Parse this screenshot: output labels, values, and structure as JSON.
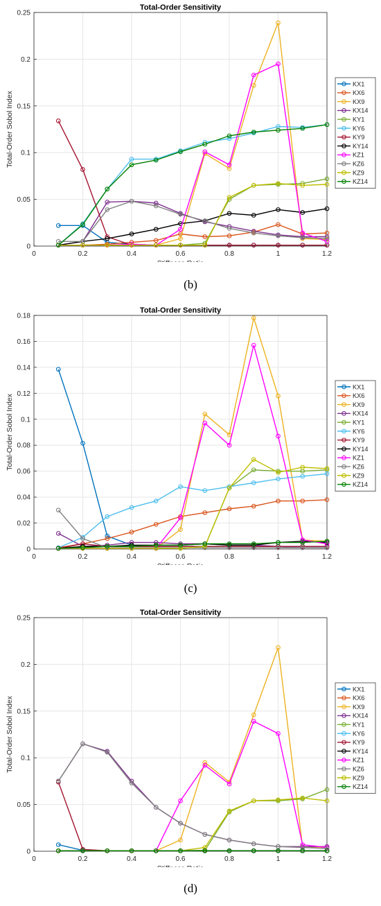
{
  "figure": {
    "captions": [
      "(b)",
      "(c)",
      "(d)"
    ]
  },
  "chart_data": [
    {
      "type": "line",
      "panel": "(b)",
      "title": "Total-Order Sensitivity",
      "xlabel": "Stiffness Ratio",
      "ylabel": "Total-Order Sobol Index",
      "xlim": [
        0,
        1.2
      ],
      "ylim": [
        0,
        0.25
      ],
      "xticks": [
        "0",
        "0.2",
        "0.4",
        "0.6",
        "0.8",
        "1",
        "1.2"
      ],
      "yticks": [
        "0",
        "0.05",
        "0.1",
        "0.15",
        "0.2",
        "0.25"
      ],
      "grid": true,
      "legend": "right",
      "x": [
        0.1,
        0.2,
        0.3,
        0.4,
        0.5,
        0.6,
        0.7,
        0.8,
        0.9,
        1.0,
        1.1,
        1.2
      ],
      "series": [
        {
          "name": "KX1",
          "color": "#0072BD",
          "values": [
            0.022,
            0.022,
            0.004,
            0.002,
            0.001,
            0.001,
            0.001,
            0.001,
            0.001,
            0.001,
            0.001,
            0.001
          ]
        },
        {
          "name": "KX6",
          "color": "#D95319",
          "values": [
            0.001,
            0.001,
            0.002,
            0.004,
            0.006,
            0.013,
            0.01,
            0.011,
            0.015,
            0.023,
            0.013,
            0.014
          ]
        },
        {
          "name": "KX9",
          "color": "#EDB120",
          "values": [
            0.001,
            0.001,
            0.001,
            0.001,
            0.001,
            0.008,
            0.099,
            0.083,
            0.172,
            0.239,
            0.008,
            0.007
          ]
        },
        {
          "name": "KX14",
          "color": "#7E2F8E",
          "values": [
            0.001,
            0.005,
            0.047,
            0.048,
            0.046,
            0.035,
            0.026,
            0.021,
            0.016,
            0.012,
            0.01,
            0.01
          ]
        },
        {
          "name": "KY1",
          "color": "#77AC30",
          "values": [
            0.001,
            0.001,
            0.001,
            0.001,
            0.001,
            0.001,
            0.003,
            0.05,
            0.065,
            0.066,
            0.067,
            0.072
          ]
        },
        {
          "name": "KY6",
          "color": "#4DBEEE",
          "values": [
            0.001,
            0.024,
            0.061,
            0.093,
            0.093,
            0.102,
            0.111,
            0.115,
            0.121,
            0.128,
            0.127,
            0.13
          ]
        },
        {
          "name": "KY9",
          "color": "#A2142F",
          "values": [
            0.134,
            0.082,
            0.01,
            0.001,
            0.001,
            0.001,
            0.001,
            0.001,
            0.001,
            0.001,
            0.001,
            0.001
          ]
        },
        {
          "name": "KY14",
          "color": "#000000",
          "values": [
            0.001,
            0.005,
            0.008,
            0.013,
            0.018,
            0.024,
            0.027,
            0.035,
            0.033,
            0.039,
            0.036,
            0.04
          ]
        },
        {
          "name": "KZ1",
          "color": "#FF00FF",
          "values": [
            0.001,
            0.001,
            0.001,
            0.002,
            0.001,
            0.018,
            0.101,
            0.087,
            0.183,
            0.195,
            0.014,
            0.005
          ]
        },
        {
          "name": "KZ6",
          "color": "#808080",
          "values": [
            0.005,
            0.005,
            0.039,
            0.048,
            0.043,
            0.034,
            0.027,
            0.019,
            0.014,
            0.011,
            0.009,
            0.008
          ]
        },
        {
          "name": "KZ9",
          "color": "#BDBD00",
          "values": [
            0.001,
            0.001,
            0.001,
            0.001,
            0.001,
            0.001,
            0.001,
            0.052,
            0.065,
            0.067,
            0.065,
            0.066
          ]
        },
        {
          "name": "KZ14",
          "color": "#008000",
          "values": [
            0.001,
            0.023,
            0.061,
            0.087,
            0.092,
            0.101,
            0.109,
            0.118,
            0.122,
            0.124,
            0.126,
            0.13
          ]
        }
      ]
    },
    {
      "type": "line",
      "panel": "(c)",
      "title": "Total-Order Sensitivity",
      "xlabel": "Stiffness Ratio",
      "ylabel": "Total-Order Sobol Index",
      "xlim": [
        0,
        1.2
      ],
      "ylim": [
        0,
        0.18
      ],
      "xticks": [
        "0",
        "0.2",
        "0.4",
        "0.6",
        "0.8",
        "1",
        "1.2"
      ],
      "yticks": [
        "0",
        "0.02",
        "0.04",
        "0.06",
        "0.08",
        "0.1",
        "0.12",
        "0.14",
        "0.16",
        "0.18"
      ],
      "grid": true,
      "legend": "right",
      "x": [
        0.1,
        0.2,
        0.3,
        0.4,
        0.5,
        0.6,
        0.7,
        0.8,
        0.9,
        1.0,
        1.1,
        1.2
      ],
      "series": [
        {
          "name": "KX1",
          "color": "#0072BD",
          "values": [
            0.1385,
            0.0815,
            0.01,
            0.003,
            0.002,
            0.002,
            0.002,
            0.002,
            0.002,
            0.002,
            0.002,
            0.002
          ]
        },
        {
          "name": "KX6",
          "color": "#D95319",
          "values": [
            0.001,
            0.004,
            0.008,
            0.013,
            0.019,
            0.025,
            0.028,
            0.031,
            0.033,
            0.037,
            0.037,
            0.038
          ]
        },
        {
          "name": "KX9",
          "color": "#EDB120",
          "values": [
            0.0005,
            0.0005,
            0.0005,
            0.0005,
            0.0005,
            0.015,
            0.104,
            0.088,
            0.178,
            0.118,
            0.007,
            0.006
          ]
        },
        {
          "name": "KX14",
          "color": "#7E2F8E",
          "values": [
            0.012,
            0.002,
            0.003,
            0.005,
            0.005,
            0.004,
            0.004,
            0.003,
            0.003,
            0.002,
            0.001,
            0.001
          ]
        },
        {
          "name": "KY1",
          "color": "#77AC30",
          "values": [
            0.0005,
            0.0005,
            0.0005,
            0.0005,
            0.0005,
            0.0005,
            0.002,
            0.047,
            0.061,
            0.06,
            0.06,
            0.061
          ]
        },
        {
          "name": "KY6",
          "color": "#4DBEEE",
          "values": [
            0.001,
            0.009,
            0.025,
            0.032,
            0.037,
            0.048,
            0.045,
            0.048,
            0.051,
            0.054,
            0.056,
            0.058
          ]
        },
        {
          "name": "KY9",
          "color": "#A2142F",
          "values": [
            0.0005,
            0.004,
            0.002,
            0.002,
            0.002,
            0.002,
            0.002,
            0.002,
            0.002,
            0.002,
            0.002,
            0.002
          ]
        },
        {
          "name": "KY14",
          "color": "#000000",
          "values": [
            0.0005,
            0.002,
            0.002,
            0.003,
            0.003,
            0.003,
            0.004,
            0.003,
            0.003,
            0.005,
            0.006,
            0.005
          ]
        },
        {
          "name": "KZ1",
          "color": "#FF00FF",
          "values": [
            0.0005,
            0.0005,
            0.0005,
            0.0005,
            0.0005,
            0.024,
            0.097,
            0.08,
            0.157,
            0.087,
            0.007,
            0.004
          ]
        },
        {
          "name": "KZ6",
          "color": "#808080",
          "values": [
            0.03,
            0.008,
            0.001,
            0.001,
            0.001,
            0.001,
            0.001,
            0.001,
            0.001,
            0.001,
            0.001,
            0.001
          ]
        },
        {
          "name": "KZ9",
          "color": "#BDBD00",
          "values": [
            0.0005,
            0.0005,
            0.0005,
            0.0005,
            0.0005,
            0.0005,
            0.002,
            0.047,
            0.069,
            0.059,
            0.063,
            0.062
          ]
        },
        {
          "name": "KZ14",
          "color": "#008000",
          "values": [
            0.0005,
            0.001,
            0.002,
            0.002,
            0.003,
            0.003,
            0.004,
            0.004,
            0.004,
            0.005,
            0.005,
            0.006
          ]
        }
      ]
    },
    {
      "type": "line",
      "panel": "(d)",
      "title": "Total-Order Sensitivity",
      "xlabel": "Stiffness Ratio",
      "ylabel": "Total-Order Sobol Index",
      "xlim": [
        0,
        1.2
      ],
      "ylim": [
        0,
        0.25
      ],
      "xticks": [
        "0",
        "0.2",
        "0.4",
        "0.6",
        "0.8",
        "1",
        "1.2"
      ],
      "yticks": [
        "0",
        "0.05",
        "0.1",
        "0.15",
        "0.2",
        "0.25"
      ],
      "grid": true,
      "legend": "right",
      "x": [
        0.1,
        0.2,
        0.3,
        0.4,
        0.5,
        0.6,
        0.7,
        0.8,
        0.9,
        1.0,
        1.1,
        1.2
      ],
      "series": [
        {
          "name": "KX1",
          "color": "#0072BD",
          "values": [
            0.007,
            0.001,
            0.0005,
            0.0005,
            0.0005,
            0.0005,
            0.0005,
            0.0005,
            0.0005,
            0.0005,
            0.0005,
            0.0005
          ]
        },
        {
          "name": "KX6",
          "color": "#D95319",
          "values": [
            0.0005,
            0.0005,
            0.0005,
            0.0005,
            0.0005,
            0.0005,
            0.0005,
            0.0005,
            0.0005,
            0.0005,
            0.0005,
            0.0005
          ]
        },
        {
          "name": "KX9",
          "color": "#EDB120",
          "values": [
            0.0005,
            0.0005,
            0.0005,
            0.0005,
            0.0005,
            0.012,
            0.095,
            0.074,
            0.146,
            0.218,
            0.005,
            0.004
          ]
        },
        {
          "name": "KX14",
          "color": "#7E2F8E",
          "values": [
            0.075,
            0.115,
            0.107,
            0.075,
            0.047,
            0.03,
            0.018,
            0.012,
            0.008,
            0.005,
            0.005,
            0.005
          ]
        },
        {
          "name": "KY1",
          "color": "#77AC30",
          "values": [
            0.0005,
            0.0005,
            0.0005,
            0.0005,
            0.0005,
            0.0005,
            0.001,
            0.042,
            0.054,
            0.054,
            0.056,
            0.066
          ]
        },
        {
          "name": "KY6",
          "color": "#4DBEEE",
          "values": [
            0.0005,
            0.0005,
            0.0005,
            0.0005,
            0.0005,
            0.0005,
            0.0005,
            0.0005,
            0.0005,
            0.0005,
            0.0005,
            0.0005
          ]
        },
        {
          "name": "KY9",
          "color": "#A2142F",
          "values": [
            0.074,
            0.002,
            0.0005,
            0.0005,
            0.0005,
            0.0005,
            0.0005,
            0.0005,
            0.0005,
            0.0005,
            0.0005,
            0.0005
          ]
        },
        {
          "name": "KY14",
          "color": "#000000",
          "values": [
            0.0005,
            0.0005,
            0.0005,
            0.0005,
            0.0005,
            0.0005,
            0.0005,
            0.0005,
            0.0005,
            0.0005,
            0.0005,
            0.0005
          ]
        },
        {
          "name": "KZ1",
          "color": "#FF00FF",
          "values": [
            0.0005,
            0.0005,
            0.0005,
            0.0005,
            0.0005,
            0.054,
            0.092,
            0.072,
            0.139,
            0.126,
            0.007,
            0.004
          ]
        },
        {
          "name": "KZ6",
          "color": "#808080",
          "values": [
            0.075,
            0.115,
            0.106,
            0.073,
            0.047,
            0.03,
            0.018,
            0.012,
            0.008,
            0.005,
            0.004,
            0.003
          ]
        },
        {
          "name": "KZ9",
          "color": "#BDBD00",
          "values": [
            0.0005,
            0.0005,
            0.0005,
            0.0005,
            0.0005,
            0.0005,
            0.004,
            0.043,
            0.054,
            0.055,
            0.057,
            0.054
          ]
        },
        {
          "name": "KZ14",
          "color": "#008000",
          "values": [
            0.0005,
            0.0005,
            0.0005,
            0.0005,
            0.0005,
            0.0005,
            0.0005,
            0.0005,
            0.0005,
            0.0005,
            0.0005,
            0.0005
          ]
        }
      ]
    }
  ]
}
